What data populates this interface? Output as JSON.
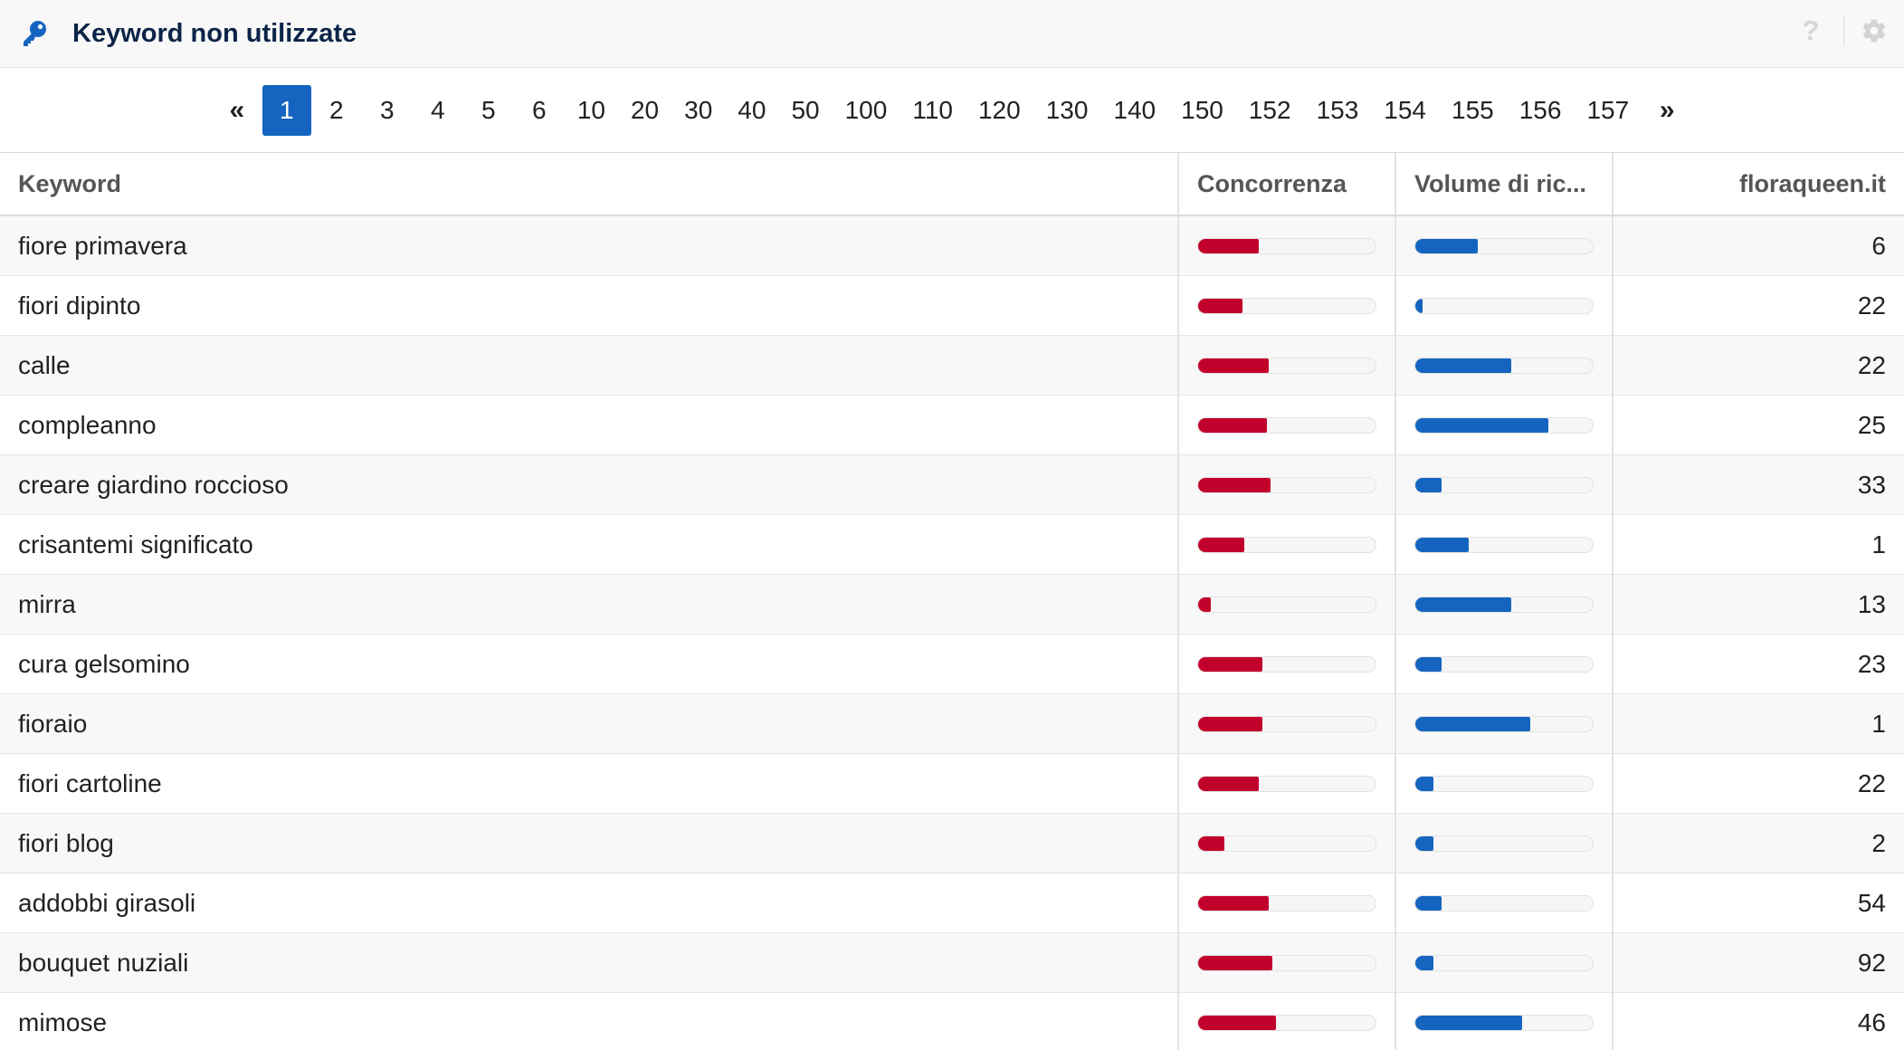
{
  "panel": {
    "title": "Keyword non utilizzate",
    "help": "?"
  },
  "colors": {
    "brand": "#1565c0",
    "competition": "#c2002c",
    "volume": "#1565c0"
  },
  "pagination": {
    "first": "«",
    "last": "»",
    "active": "1",
    "pages": [
      "1",
      "2",
      "3",
      "4",
      "5",
      "6",
      "10",
      "20",
      "30",
      "40",
      "50",
      "100",
      "110",
      "120",
      "130",
      "140",
      "150",
      "152",
      "153",
      "154",
      "155",
      "156",
      "157"
    ]
  },
  "table": {
    "columns": {
      "keyword": "Keyword",
      "competition": "Concorrenza",
      "volume": "Volume di ric...",
      "site": "floraqueen.it"
    },
    "rows": [
      {
        "keyword": "fiore primavera",
        "competition": 0.34,
        "volume": 0.35,
        "value": "6"
      },
      {
        "keyword": "fiori dipinto",
        "competition": 0.25,
        "volume": 0.04,
        "value": "22"
      },
      {
        "keyword": "calle",
        "competition": 0.4,
        "volume": 0.54,
        "value": "22"
      },
      {
        "keyword": "compleanno",
        "competition": 0.39,
        "volume": 0.75,
        "value": "25"
      },
      {
        "keyword": "creare giardino roccioso",
        "competition": 0.41,
        "volume": 0.15,
        "value": "33"
      },
      {
        "keyword": "crisantemi significato",
        "competition": 0.26,
        "volume": 0.3,
        "value": "1"
      },
      {
        "keyword": "mirra",
        "competition": 0.07,
        "volume": 0.54,
        "value": "13"
      },
      {
        "keyword": "cura gelsomino",
        "competition": 0.36,
        "volume": 0.15,
        "value": "23"
      },
      {
        "keyword": "fioraio",
        "competition": 0.36,
        "volume": 0.65,
        "value": "1"
      },
      {
        "keyword": "fiori cartoline",
        "competition": 0.34,
        "volume": 0.1,
        "value": "22"
      },
      {
        "keyword": "fiori blog",
        "competition": 0.15,
        "volume": 0.1,
        "value": "2"
      },
      {
        "keyword": "addobbi girasoli",
        "competition": 0.4,
        "volume": 0.15,
        "value": "54"
      },
      {
        "keyword": "bouquet nuziali",
        "competition": 0.42,
        "volume": 0.1,
        "value": "92"
      },
      {
        "keyword": "mimose",
        "competition": 0.44,
        "volume": 0.6,
        "value": "46"
      }
    ]
  }
}
